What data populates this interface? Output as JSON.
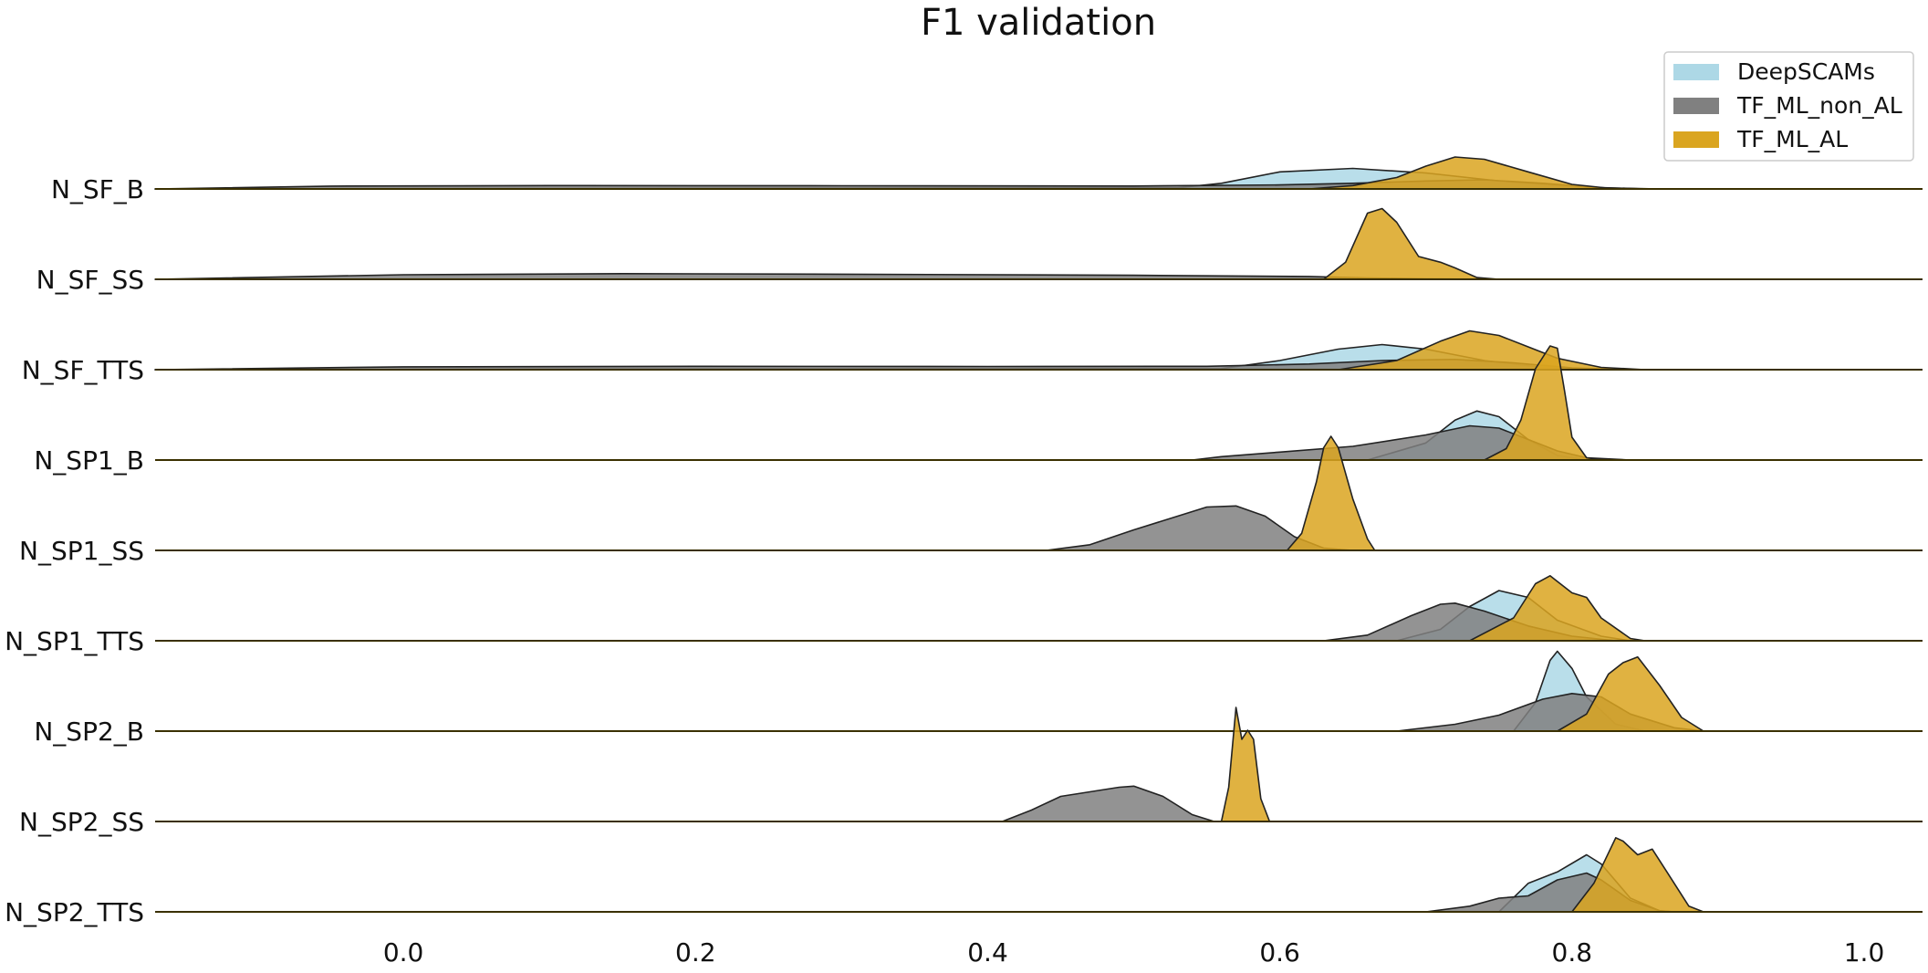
{
  "chart_data": {
    "type": "ridgeline",
    "title": "F1 validation",
    "xlabel": "",
    "ylabel": "",
    "xlim": [
      -0.17,
      1.04
    ],
    "xticks": [
      "0.0",
      "0.2",
      "0.4",
      "0.6",
      "0.8",
      "1.0"
    ],
    "xtick_values": [
      0.0,
      0.2,
      0.4,
      0.6,
      0.8,
      1.0
    ],
    "legend_position": "top-right",
    "grid": false,
    "series": [
      {
        "name": "DeepSCAMs",
        "color": "#add8e6"
      },
      {
        "name": "TF_ML_non_AL",
        "color": "#808080"
      },
      {
        "name": "TF_ML_AL",
        "color": "#daa520"
      }
    ],
    "rows": [
      {
        "label": "N_SF_B",
        "densities": {
          "DeepSCAMs": [
            [
              -0.17,
              0
            ],
            [
              0.53,
              0.01
            ],
            [
              0.56,
              0.05
            ],
            [
              0.6,
              0.15
            ],
            [
              0.65,
              0.18
            ],
            [
              0.7,
              0.14
            ],
            [
              0.75,
              0.07
            ],
            [
              0.8,
              0.02
            ],
            [
              0.85,
              0
            ]
          ],
          "TF_ML_non_AL": [
            [
              -0.17,
              0
            ],
            [
              -0.05,
              0.025
            ],
            [
              0.1,
              0.03
            ],
            [
              0.3,
              0.028
            ],
            [
              0.5,
              0.026
            ],
            [
              0.6,
              0.035
            ],
            [
              0.65,
              0.05
            ],
            [
              0.7,
              0.07
            ],
            [
              0.74,
              0.08
            ],
            [
              0.78,
              0.05
            ],
            [
              0.82,
              0.01
            ],
            [
              0.86,
              0
            ]
          ],
          "TF_ML_AL": [
            [
              0.62,
              0
            ],
            [
              0.65,
              0.03
            ],
            [
              0.68,
              0.1
            ],
            [
              0.7,
              0.2
            ],
            [
              0.72,
              0.28
            ],
            [
              0.74,
              0.26
            ],
            [
              0.77,
              0.15
            ],
            [
              0.8,
              0.04
            ],
            [
              0.83,
              0
            ]
          ]
        }
      },
      {
        "label": "N_SF_SS",
        "densities": {
          "TF_ML_non_AL": [
            [
              -0.17,
              0
            ],
            [
              0.0,
              0.04
            ],
            [
              0.15,
              0.05
            ],
            [
              0.3,
              0.045
            ],
            [
              0.5,
              0.035
            ],
            [
              0.62,
              0.025
            ],
            [
              0.66,
              0.012
            ],
            [
              0.7,
              0.005
            ],
            [
              0.76,
              0
            ]
          ],
          "TF_ML_AL": [
            [
              0.63,
              0
            ],
            [
              0.645,
              0.15
            ],
            [
              0.66,
              0.58
            ],
            [
              0.67,
              0.62
            ],
            [
              0.68,
              0.5
            ],
            [
              0.695,
              0.2
            ],
            [
              0.71,
              0.15
            ],
            [
              0.72,
              0.1
            ],
            [
              0.735,
              0.015
            ],
            [
              0.75,
              0
            ]
          ]
        }
      },
      {
        "label": "N_SF_TTS",
        "densities": {
          "DeepSCAMs": [
            [
              -0.17,
              0
            ],
            [
              0.56,
              0.01
            ],
            [
              0.6,
              0.08
            ],
            [
              0.64,
              0.18
            ],
            [
              0.67,
              0.22
            ],
            [
              0.7,
              0.18
            ],
            [
              0.74,
              0.08
            ],
            [
              0.78,
              0.02
            ],
            [
              0.82,
              0
            ]
          ],
          "TF_ML_non_AL": [
            [
              -0.17,
              0
            ],
            [
              0.0,
              0.025
            ],
            [
              0.2,
              0.03
            ],
            [
              0.4,
              0.028
            ],
            [
              0.55,
              0.03
            ],
            [
              0.62,
              0.05
            ],
            [
              0.67,
              0.08
            ],
            [
              0.72,
              0.09
            ],
            [
              0.76,
              0.06
            ],
            [
              0.8,
              0.015
            ],
            [
              0.84,
              0
            ]
          ],
          "TF_ML_AL": [
            [
              0.64,
              0
            ],
            [
              0.68,
              0.08
            ],
            [
              0.71,
              0.25
            ],
            [
              0.73,
              0.34
            ],
            [
              0.75,
              0.3
            ],
            [
              0.77,
              0.2
            ],
            [
              0.79,
              0.1
            ],
            [
              0.82,
              0.02
            ],
            [
              0.85,
              0
            ]
          ]
        }
      },
      {
        "label": "N_SP1_B",
        "densities": {
          "TF_ML_non_AL": [
            [
              0.54,
              0
            ],
            [
              0.56,
              0.03
            ],
            [
              0.6,
              0.07
            ],
            [
              0.65,
              0.12
            ],
            [
              0.7,
              0.22
            ],
            [
              0.73,
              0.3
            ],
            [
              0.75,
              0.28
            ],
            [
              0.77,
              0.18
            ],
            [
              0.79,
              0.08
            ],
            [
              0.81,
              0.02
            ],
            [
              0.84,
              0
            ]
          ],
          "DeepSCAMs": [
            [
              0.66,
              0
            ],
            [
              0.7,
              0.15
            ],
            [
              0.72,
              0.35
            ],
            [
              0.735,
              0.43
            ],
            [
              0.75,
              0.38
            ],
            [
              0.77,
              0.18
            ],
            [
              0.79,
              0.04
            ],
            [
              0.81,
              0
            ]
          ],
          "TF_ML_AL": [
            [
              0.74,
              0
            ],
            [
              0.755,
              0.1
            ],
            [
              0.765,
              0.35
            ],
            [
              0.775,
              0.8
            ],
            [
              0.785,
              1.0
            ],
            [
              0.79,
              0.98
            ],
            [
              0.795,
              0.6
            ],
            [
              0.8,
              0.2
            ],
            [
              0.81,
              0.02
            ],
            [
              0.82,
              0
            ]
          ]
        }
      },
      {
        "label": "N_SP1_SS",
        "densities": {
          "TF_ML_non_AL": [
            [
              0.44,
              0
            ],
            [
              0.47,
              0.05
            ],
            [
              0.5,
              0.18
            ],
            [
              0.53,
              0.3
            ],
            [
              0.55,
              0.38
            ],
            [
              0.57,
              0.39
            ],
            [
              0.59,
              0.3
            ],
            [
              0.61,
              0.12
            ],
            [
              0.63,
              0.02
            ],
            [
              0.65,
              0
            ]
          ],
          "TF_ML_AL": [
            [
              0.605,
              0
            ],
            [
              0.615,
              0.15
            ],
            [
              0.625,
              0.6
            ],
            [
              0.63,
              0.9
            ],
            [
              0.635,
              1.0
            ],
            [
              0.64,
              0.9
            ],
            [
              0.65,
              0.45
            ],
            [
              0.66,
              0.1
            ],
            [
              0.665,
              0
            ]
          ]
        }
      },
      {
        "label": "N_SP1_TTS",
        "densities": {
          "TF_ML_non_AL": [
            [
              0.63,
              0
            ],
            [
              0.66,
              0.05
            ],
            [
              0.69,
              0.22
            ],
            [
              0.71,
              0.32
            ],
            [
              0.72,
              0.33
            ],
            [
              0.74,
              0.26
            ],
            [
              0.77,
              0.13
            ],
            [
              0.8,
              0.04
            ],
            [
              0.83,
              0
            ]
          ],
          "DeepSCAMs": [
            [
              0.68,
              0
            ],
            [
              0.71,
              0.1
            ],
            [
              0.73,
              0.3
            ],
            [
              0.75,
              0.44
            ],
            [
              0.77,
              0.38
            ],
            [
              0.79,
              0.18
            ],
            [
              0.82,
              0.04
            ],
            [
              0.84,
              0
            ]
          ],
          "TF_ML_AL": [
            [
              0.73,
              0
            ],
            [
              0.76,
              0.2
            ],
            [
              0.775,
              0.5
            ],
            [
              0.785,
              0.57
            ],
            [
              0.8,
              0.42
            ],
            [
              0.81,
              0.38
            ],
            [
              0.82,
              0.2
            ],
            [
              0.84,
              0.02
            ],
            [
              0.85,
              0
            ]
          ]
        }
      },
      {
        "label": "N_SP2_B",
        "densities": {
          "TF_ML_non_AL": [
            [
              0.68,
              0
            ],
            [
              0.72,
              0.06
            ],
            [
              0.75,
              0.14
            ],
            [
              0.78,
              0.28
            ],
            [
              0.8,
              0.33
            ],
            [
              0.82,
              0.3
            ],
            [
              0.84,
              0.15
            ],
            [
              0.87,
              0.03
            ],
            [
              0.89,
              0
            ]
          ],
          "DeepSCAMs": [
            [
              0.76,
              0
            ],
            [
              0.775,
              0.25
            ],
            [
              0.785,
              0.62
            ],
            [
              0.79,
              0.7
            ],
            [
              0.8,
              0.55
            ],
            [
              0.81,
              0.3
            ],
            [
              0.83,
              0.06
            ],
            [
              0.85,
              0
            ]
          ],
          "TF_ML_AL": [
            [
              0.79,
              0
            ],
            [
              0.81,
              0.15
            ],
            [
              0.825,
              0.5
            ],
            [
              0.835,
              0.6
            ],
            [
              0.845,
              0.65
            ],
            [
              0.86,
              0.4
            ],
            [
              0.875,
              0.12
            ],
            [
              0.89,
              0
            ]
          ]
        }
      },
      {
        "label": "N_SP2_SS",
        "densities": {
          "TF_ML_non_AL": [
            [
              0.41,
              0
            ],
            [
              0.43,
              0.1
            ],
            [
              0.45,
              0.22
            ],
            [
              0.47,
              0.26
            ],
            [
              0.49,
              0.3
            ],
            [
              0.5,
              0.31
            ],
            [
              0.52,
              0.22
            ],
            [
              0.54,
              0.06
            ],
            [
              0.555,
              0
            ]
          ],
          "TF_ML_AL": [
            [
              0.56,
              0
            ],
            [
              0.565,
              0.3
            ],
            [
              0.57,
              1.0
            ],
            [
              0.574,
              0.72
            ],
            [
              0.578,
              0.8
            ],
            [
              0.582,
              0.72
            ],
            [
              0.587,
              0.2
            ],
            [
              0.593,
              0
            ]
          ]
        }
      },
      {
        "label": "N_SP2_TTS",
        "densities": {
          "TF_ML_non_AL": [
            [
              0.7,
              0
            ],
            [
              0.73,
              0.05
            ],
            [
              0.75,
              0.12
            ],
            [
              0.77,
              0.14
            ],
            [
              0.79,
              0.28
            ],
            [
              0.81,
              0.34
            ],
            [
              0.82,
              0.28
            ],
            [
              0.84,
              0.1
            ],
            [
              0.86,
              0.01
            ],
            [
              0.87,
              0
            ]
          ],
          "DeepSCAMs": [
            [
              0.75,
              0
            ],
            [
              0.77,
              0.25
            ],
            [
              0.79,
              0.35
            ],
            [
              0.81,
              0.5
            ],
            [
              0.82,
              0.42
            ],
            [
              0.84,
              0.12
            ],
            [
              0.86,
              0.01
            ],
            [
              0.87,
              0
            ]
          ],
          "TF_ML_AL": [
            [
              0.8,
              0
            ],
            [
              0.815,
              0.25
            ],
            [
              0.83,
              0.65
            ],
            [
              0.835,
              0.62
            ],
            [
              0.845,
              0.5
            ],
            [
              0.855,
              0.55
            ],
            [
              0.865,
              0.35
            ],
            [
              0.88,
              0.05
            ],
            [
              0.89,
              0
            ]
          ]
        }
      }
    ]
  }
}
